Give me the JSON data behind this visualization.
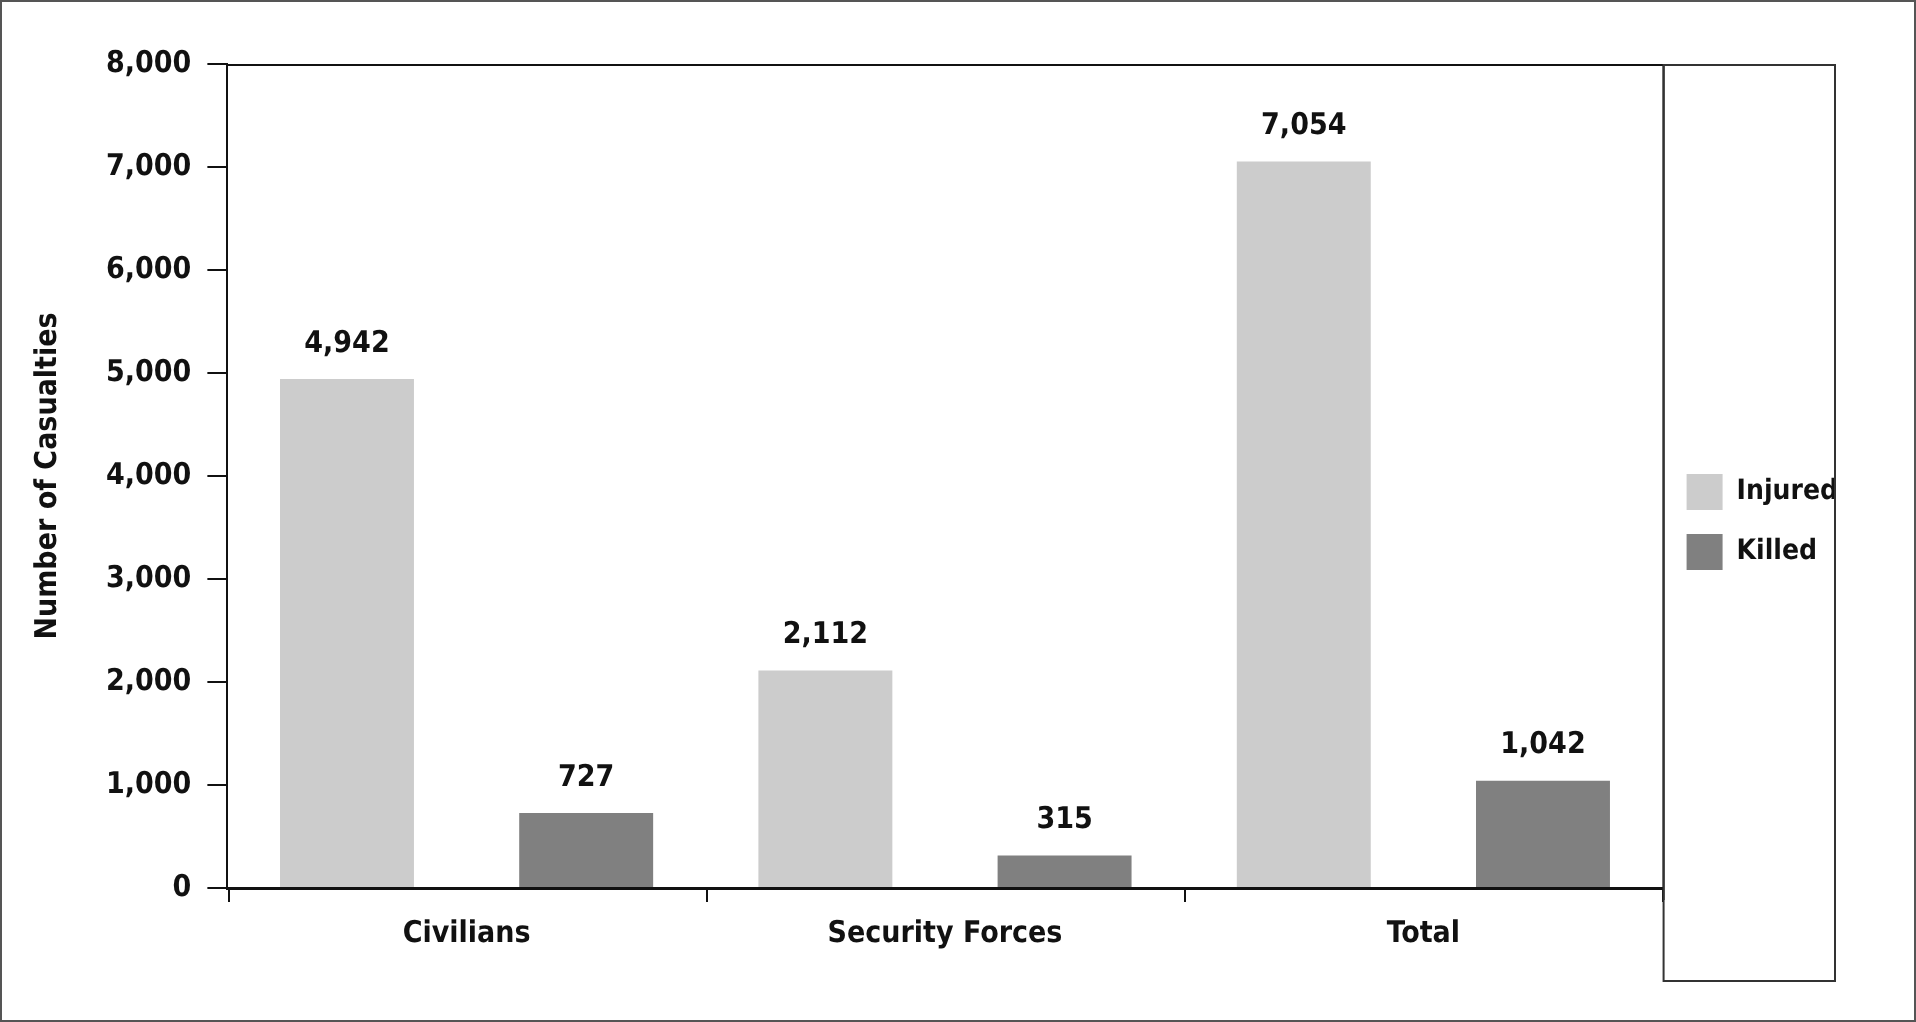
{
  "chart_data": {
    "type": "bar",
    "ylabel": "Number of Casualties",
    "categories": [
      "Civilians",
      "Security Forces",
      "Total"
    ],
    "series": [
      {
        "name": "Injured",
        "color": "#cccccc",
        "values": [
          4942,
          2112,
          7054
        ],
        "value_labels": [
          "4,942",
          "2,112",
          "7,054"
        ]
      },
      {
        "name": "Killed",
        "color": "#808080",
        "values": [
          727,
          315,
          1042
        ],
        "value_labels": [
          "727",
          "315",
          "1,042"
        ]
      }
    ],
    "ylim": [
      0,
      8000
    ],
    "yticks": [
      {
        "value": 0,
        "label": "0"
      },
      {
        "value": 1000,
        "label": "1,000"
      },
      {
        "value": 2000,
        "label": "2,000"
      },
      {
        "value": 3000,
        "label": "3,000"
      },
      {
        "value": 4000,
        "label": "4,000"
      },
      {
        "value": 5000,
        "label": "5,000"
      },
      {
        "value": 6000,
        "label": "6,000"
      },
      {
        "value": 7000,
        "label": "7,000"
      },
      {
        "value": 8000,
        "label": "8,000"
      }
    ],
    "grid": false,
    "legend": "right"
  }
}
